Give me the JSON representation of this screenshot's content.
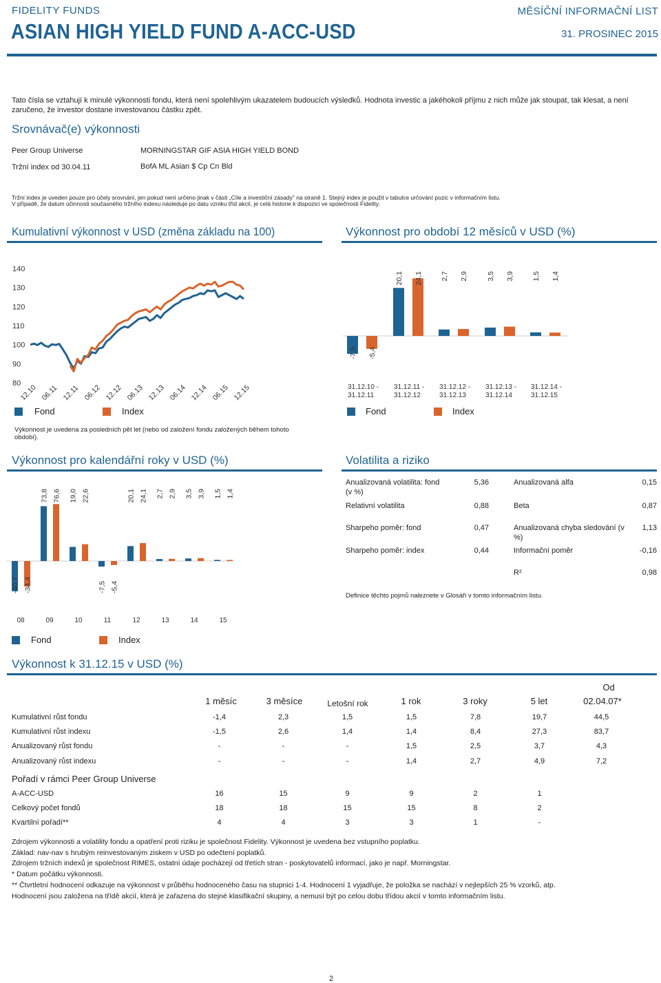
{
  "header": {
    "brand": "FIDELITY FUNDS",
    "fund_name": "ASIAN HIGH YIELD FUND A-ACC-USD",
    "doc_type": "MĚSÍČNÍ INFORMAČNÍ LIST",
    "date": "31. PROSINEC 2015"
  },
  "disclaimer": "Tato čísla se vztahují k minulé výkonnosti fondu, která není spolehlivým ukazatelem budoucích výsledků. Hodnota investic a jakéhokoli příjmu z nich může jak stoupat, tak klesat, a není zaručeno, že investor dostane investovanou částku zpět.",
  "comparators": {
    "title": "Srovnávač(e) výkonnosti",
    "rows": [
      {
        "label": "Peer Group Universe",
        "value": "MORNINGSTAR GIF ASIA HIGH YIELD BOND"
      },
      {
        "label": "Tržní index od 30.04.11",
        "value": "BofA ML Asian $ Cp Cn Bld"
      }
    ],
    "note_lines": [
      "Tržní index je uveden pouze pro účely srovnání, jen pokud není určeno jinak v části „Cíle a investiční zásady” na straně 1. Stejný index je použit v tabulce určování pozic v informačním listu.",
      "V případě, že datum účinnosti současného tržního indexu následuje po datu vzniku tříd akcií, je celá historie k dispozici ve společnosti Fidelity."
    ]
  },
  "legend": {
    "fund": "Fond",
    "index": "Index"
  },
  "colors": {
    "fund": "#1f6392",
    "index": "#d9642c",
    "accent": "#1f6392"
  },
  "chart_data": [
    {
      "type": "line",
      "title": "Kumulativní výkonnost v USD (změna základu na 100)",
      "ylim": [
        80,
        140
      ],
      "yticks": [
        140,
        130,
        120,
        110,
        100,
        90,
        80
      ],
      "xticks": [
        "12.10",
        "06.11",
        "12.11",
        "06.12",
        "12.12",
        "06.13",
        "12.13",
        "06.14",
        "12.14",
        "06.15",
        "12.15"
      ],
      "series": [
        {
          "name": "Fond",
          "values": [
            100,
            100.5,
            99.8,
            101,
            99.5,
            98.8,
            100.2,
            99.8,
            100.4,
            97.5,
            94.5,
            90.5,
            87.5,
            91.5,
            90,
            94,
            93.5,
            96,
            95.5,
            98,
            98.5,
            101.5,
            103,
            105,
            107,
            108.5,
            109.5,
            109,
            110.5,
            112,
            113.5,
            114,
            114.5,
            112.5,
            113.5,
            115.5,
            114,
            116.5,
            118,
            119.5,
            121,
            122,
            123.5,
            124,
            124.5,
            125.5,
            126,
            127,
            126.5,
            128.5,
            128,
            128.5,
            125,
            126,
            127,
            126,
            125,
            124,
            125.5,
            124
          ]
        },
        {
          "name": "Index",
          "values": [
            null,
            null,
            null,
            null,
            null,
            null,
            null,
            null,
            null,
            null,
            null,
            89,
            86,
            92.5,
            90.5,
            93,
            94.5,
            98.5,
            97.5,
            100.5,
            102,
            104.5,
            106,
            108,
            110.5,
            111.5,
            112.5,
            113,
            115,
            116.5,
            117.5,
            118,
            118.5,
            117,
            118.5,
            120,
            118.5,
            121,
            122.5,
            123.5,
            125,
            126.5,
            128,
            129,
            130,
            129.5,
            131,
            132,
            131,
            132,
            131.5,
            133,
            130.5,
            131,
            132,
            133,
            133,
            131.5,
            131,
            129
          ]
        }
      ]
    },
    {
      "type": "bar",
      "title": "Výkonnost pro období 12 měsíců v USD (%)",
      "categories": [
        "31.12.10 - 31.12.11",
        "31.12.11 - 31.12.12",
        "31.12.12 - 31.12.13",
        "31.12.13 - 31.12.14",
        "31.12.14 - 31.12.15"
      ],
      "series": [
        {
          "name": "Fond",
          "values": [
            -7.5,
            20.1,
            2.7,
            3.5,
            1.5
          ],
          "labels": [
            "-7,5",
            "20,1",
            "2,7",
            "3,5",
            "1,5"
          ]
        },
        {
          "name": "Index",
          "values": [
            -5.4,
            24.1,
            2.9,
            3.9,
            1.4
          ],
          "labels": [
            "-5,4",
            "24,1",
            "2,9",
            "3,9",
            "1,4"
          ]
        }
      ]
    },
    {
      "type": "bar",
      "title": "Výkonnost pro kalendářní roky v USD (%)",
      "categories": [
        "08",
        "09",
        "10",
        "11",
        "12",
        "13",
        "14",
        "15"
      ],
      "series": [
        {
          "name": "Fond",
          "values": [
            -40.7,
            73.8,
            19.0,
            -7.5,
            20.1,
            2.7,
            3.5,
            1.5
          ],
          "labels": [
            "-40,7",
            "73,8",
            "19,0",
            "-7,5",
            "20,1",
            "2,7",
            "3,5",
            "1,5"
          ]
        },
        {
          "name": "Index",
          "values": [
            -34.4,
            76.6,
            22.6,
            -5.4,
            24.1,
            2.9,
            3.9,
            1.4
          ],
          "labels": [
            "-34,4",
            "76,6",
            "22,6",
            "-5,4",
            "24,1",
            "2,9",
            "3,9",
            "1,4"
          ]
        }
      ]
    }
  ],
  "perf_note": "Výkonnost je uvedena za posledních pět let (nebo od založení fondu založených během tohoto období).",
  "volatility": {
    "title": "Volatilita a riziko",
    "left": [
      {
        "label": "Anualizovaná volatilita: fond (v %)",
        "value": "5,36"
      },
      {
        "label": "Relativní volatilita",
        "value": "0,88"
      },
      {
        "label": "Sharpeho poměr: fond",
        "value": "0,47"
      },
      {
        "label": "Sharpeho poměr: index",
        "value": "0,44"
      }
    ],
    "right": [
      {
        "label": "Anualizovaná alfa",
        "value": "0,15"
      },
      {
        "label": "Beta",
        "value": "0,87"
      },
      {
        "label": "Anualizovaná chyba sledování (v %)",
        "value": "1,13"
      },
      {
        "label": "Informační poměr",
        "value": "-0,16"
      },
      {
        "label": "R²",
        "value": "0,98"
      }
    ],
    "note": "Definice těchto pojmů naleznete v Glosáři v tomto informačním listu."
  },
  "perf_table": {
    "title": "Výkonnost k 31.12.15 v USD (%)",
    "headers": [
      "1 měsíc",
      "3 měsíce",
      "Letošní rok",
      "1 rok",
      "3 roky",
      "5 let",
      "Od",
      "02.04.07*"
    ],
    "rows": [
      {
        "label": "Kumulativní růst fondu",
        "values": [
          "-1,4",
          "2,3",
          "1,5",
          "1,5",
          "7,8",
          "19,7",
          "44,5"
        ]
      },
      {
        "label": "Kumulativní růst indexu",
        "values": [
          "-1,5",
          "2,6",
          "1,4",
          "1,4",
          "8,4",
          "27,3",
          "83,7"
        ]
      },
      {
        "label": "Anualizovaný růst fondu",
        "values": [
          "-",
          "-",
          "-",
          "1,5",
          "2,5",
          "3,7",
          "4,3"
        ]
      },
      {
        "label": "Anualizovaný růst indexu",
        "values": [
          "-",
          "-",
          "-",
          "1,4",
          "2,7",
          "4,9",
          "7,2"
        ]
      }
    ],
    "rank_title": "Pořadí v rámci Peer Group Universe",
    "rank_rows": [
      {
        "label": "A-ACC-USD",
        "values": [
          "16",
          "15",
          "9",
          "9",
          "2",
          "1"
        ]
      },
      {
        "label": "Celkový počet fondů",
        "values": [
          "18",
          "18",
          "15",
          "15",
          "8",
          "2"
        ]
      },
      {
        "label": "Kvartilní pořadí**",
        "values": [
          "4",
          "4",
          "3",
          "3",
          "1",
          "-"
        ]
      }
    ]
  },
  "footnotes": [
    "Zdrojem výkonnosti a volatility fondu a opatření proti riziku je společnost Fidelity. Výkonnost je uvedena bez vstupního poplatku.",
    "Základ: nav-nav s hrubým reinvestovaným ziskem v USD po odečtení poplatků.",
    "Zdrojem tržních indexů je společnost RIMES, ostatní údaje pocházejí od třetích stran - poskytovatelů informací, jako je např. Morningstar.",
    "* Datum počátku výkonnosti.",
    "** Čtvrtletní hodnocení odkazuje na výkonnost v průběhu hodnoceného času na stupnici 1-4. Hodnocení 1 vyjadřuje, že položka se nachází v nejlepších 25 % vzorků, atp.",
    "Hodnocení jsou založena na třídě akcií, která je zařazena do stejné klasifikační skupiny, a nemusí být po celou dobu třídou akcií v tomto informačním listu."
  ],
  "page_number": "2"
}
